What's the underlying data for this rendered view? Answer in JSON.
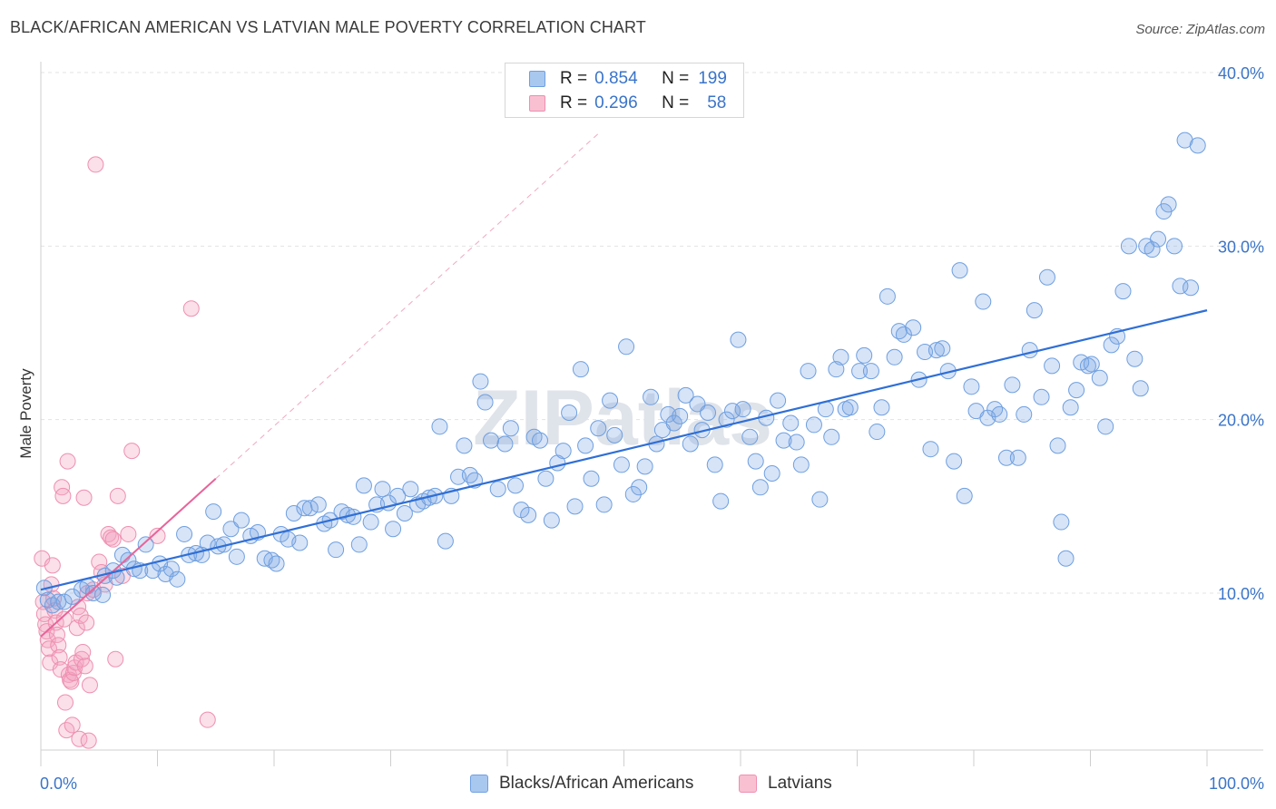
{
  "header": {
    "title": "BLACK/AFRICAN AMERICAN VS LATVIAN MALE POVERTY CORRELATION CHART",
    "source": "Source: ZipAtlas.com"
  },
  "watermark": "ZIPatlas",
  "legend": {
    "rows": [
      {
        "r_label": "R =",
        "r_value": "0.854",
        "n_label": "N =",
        "n_value": "199",
        "color": "#a9c8f0",
        "border": "#6e9fe0"
      },
      {
        "r_label": "R =",
        "r_value": "0.296",
        "n_label": "N =",
        "n_value": "58",
        "color": "#f9c0d2",
        "border": "#ee8fb0"
      }
    ]
  },
  "bottom_legend": {
    "items": [
      {
        "label": "Blacks/African Americans",
        "color": "#a9c8f0",
        "border": "#6e9fe0"
      },
      {
        "label": "Latvians",
        "color": "#f9c0d2",
        "border": "#ee8fb0"
      }
    ]
  },
  "chart_data": {
    "type": "scatter",
    "title": "BLACK/AFRICAN AMERICAN VS LATVIAN MALE POVERTY CORRELATION CHART",
    "xlabel": "",
    "ylabel": "Male Poverty",
    "xlim": [
      0,
      100
    ],
    "ylim": [
      0,
      42
    ],
    "x_tick_labels": [
      "0.0%",
      "100.0%"
    ],
    "y_ticks": [
      10,
      20,
      30,
      40
    ],
    "y_tick_labels": [
      "10.0%",
      "20.0%",
      "30.0%",
      "40.0%"
    ],
    "grid": true,
    "colors": {
      "blue": "#7ba7e6",
      "blue_line": "#2f6fd6",
      "pink": "#f3a3bf",
      "pink_line": "#e8649a"
    },
    "series": [
      {
        "name": "Blacks/African Americans",
        "trendline": {
          "x0": 0,
          "y0": 10.2,
          "x1": 100,
          "y1": 26.3
        },
        "points": [
          [
            0.3,
            10.3
          ],
          [
            0.6,
            9.6
          ],
          [
            1.0,
            9.3
          ],
          [
            1.5,
            9.5
          ],
          [
            2.0,
            9.5
          ],
          [
            2.7,
            9.8
          ],
          [
            3.5,
            10.2
          ],
          [
            4.0,
            10.4
          ],
          [
            4.5,
            10.0
          ],
          [
            5.3,
            9.9
          ],
          [
            5.5,
            11.0
          ],
          [
            6.2,
            11.3
          ],
          [
            6.5,
            10.9
          ],
          [
            7.0,
            12.2
          ],
          [
            7.5,
            11.9
          ],
          [
            8.0,
            11.4
          ],
          [
            8.5,
            11.3
          ],
          [
            9.0,
            12.8
          ],
          [
            9.6,
            11.3
          ],
          [
            10.2,
            11.7
          ],
          [
            10.7,
            11.1
          ],
          [
            11.2,
            11.4
          ],
          [
            11.7,
            10.8
          ],
          [
            12.3,
            13.4
          ],
          [
            12.7,
            12.2
          ],
          [
            13.3,
            12.3
          ],
          [
            13.8,
            12.2
          ],
          [
            14.3,
            12.9
          ],
          [
            14.8,
            14.7
          ],
          [
            15.2,
            12.7
          ],
          [
            15.7,
            12.8
          ],
          [
            16.3,
            13.7
          ],
          [
            16.8,
            12.1
          ],
          [
            17.2,
            14.2
          ],
          [
            18.0,
            13.3
          ],
          [
            18.6,
            13.5
          ],
          [
            19.2,
            12.0
          ],
          [
            19.8,
            11.9
          ],
          [
            20.2,
            11.7
          ],
          [
            20.6,
            13.4
          ],
          [
            21.2,
            13.1
          ],
          [
            21.7,
            14.6
          ],
          [
            22.2,
            12.9
          ],
          [
            22.6,
            14.9
          ],
          [
            23.1,
            14.9
          ],
          [
            23.8,
            15.1
          ],
          [
            24.3,
            14.0
          ],
          [
            24.8,
            14.2
          ],
          [
            25.3,
            12.5
          ],
          [
            25.8,
            14.7
          ],
          [
            26.3,
            14.5
          ],
          [
            26.8,
            14.4
          ],
          [
            27.3,
            12.8
          ],
          [
            27.7,
            16.2
          ],
          [
            28.3,
            14.1
          ],
          [
            28.8,
            15.1
          ],
          [
            29.3,
            16.0
          ],
          [
            29.8,
            15.2
          ],
          [
            30.2,
            13.7
          ],
          [
            30.6,
            15.6
          ],
          [
            31.2,
            14.6
          ],
          [
            31.7,
            16.0
          ],
          [
            32.3,
            15.1
          ],
          [
            32.8,
            15.3
          ],
          [
            33.3,
            15.5
          ],
          [
            33.8,
            15.6
          ],
          [
            34.2,
            19.6
          ],
          [
            34.7,
            13.0
          ],
          [
            35.2,
            15.6
          ],
          [
            35.8,
            16.7
          ],
          [
            36.3,
            18.5
          ],
          [
            36.8,
            16.8
          ],
          [
            37.2,
            16.5
          ],
          [
            37.7,
            22.2
          ],
          [
            38.1,
            21.0
          ],
          [
            38.6,
            18.8
          ],
          [
            39.2,
            16.0
          ],
          [
            39.8,
            18.6
          ],
          [
            40.3,
            19.5
          ],
          [
            40.7,
            16.2
          ],
          [
            41.2,
            14.8
          ],
          [
            41.8,
            14.5
          ],
          [
            42.3,
            19.0
          ],
          [
            42.8,
            18.8
          ],
          [
            43.3,
            16.6
          ],
          [
            43.8,
            14.2
          ],
          [
            44.3,
            17.5
          ],
          [
            44.8,
            18.2
          ],
          [
            45.3,
            20.4
          ],
          [
            45.8,
            15.0
          ],
          [
            46.3,
            22.9
          ],
          [
            46.7,
            18.5
          ],
          [
            47.2,
            16.6
          ],
          [
            47.8,
            19.5
          ],
          [
            48.3,
            15.1
          ],
          [
            48.8,
            21.1
          ],
          [
            49.2,
            19.1
          ],
          [
            49.8,
            17.4
          ],
          [
            50.2,
            24.2
          ],
          [
            50.8,
            15.7
          ],
          [
            51.3,
            16.1
          ],
          [
            51.8,
            17.3
          ],
          [
            52.3,
            21.3
          ],
          [
            52.8,
            18.6
          ],
          [
            53.3,
            19.4
          ],
          [
            53.8,
            20.3
          ],
          [
            54.3,
            19.8
          ],
          [
            54.8,
            20.2
          ],
          [
            55.3,
            21.4
          ],
          [
            55.7,
            18.6
          ],
          [
            56.3,
            20.9
          ],
          [
            56.7,
            19.4
          ],
          [
            57.2,
            20.4
          ],
          [
            57.8,
            17.4
          ],
          [
            58.3,
            15.3
          ],
          [
            58.8,
            20.0
          ],
          [
            59.3,
            20.5
          ],
          [
            59.8,
            24.6
          ],
          [
            60.2,
            20.6
          ],
          [
            60.8,
            19.0
          ],
          [
            61.3,
            17.6
          ],
          [
            61.7,
            16.1
          ],
          [
            62.2,
            20.1
          ],
          [
            62.7,
            16.9
          ],
          [
            63.2,
            21.1
          ],
          [
            63.7,
            18.8
          ],
          [
            64.3,
            19.8
          ],
          [
            64.8,
            18.7
          ],
          [
            65.2,
            17.4
          ],
          [
            65.8,
            22.8
          ],
          [
            66.3,
            19.7
          ],
          [
            66.8,
            15.4
          ],
          [
            67.3,
            20.6
          ],
          [
            67.8,
            19.0
          ],
          [
            68.2,
            22.9
          ],
          [
            68.6,
            23.6
          ],
          [
            69.0,
            20.6
          ],
          [
            69.4,
            20.7
          ],
          [
            70.2,
            22.8
          ],
          [
            70.6,
            23.7
          ],
          [
            71.2,
            22.8
          ],
          [
            71.7,
            19.3
          ],
          [
            72.1,
            20.7
          ],
          [
            72.6,
            27.1
          ],
          [
            73.2,
            23.6
          ],
          [
            73.6,
            25.1
          ],
          [
            74.0,
            24.9
          ],
          [
            74.8,
            25.3
          ],
          [
            75.3,
            22.3
          ],
          [
            75.8,
            23.9
          ],
          [
            76.3,
            18.3
          ],
          [
            76.8,
            24.0
          ],
          [
            77.3,
            24.1
          ],
          [
            77.8,
            22.8
          ],
          [
            78.3,
            17.6
          ],
          [
            78.8,
            28.6
          ],
          [
            79.2,
            15.6
          ],
          [
            79.8,
            21.9
          ],
          [
            80.2,
            20.5
          ],
          [
            80.8,
            26.8
          ],
          [
            81.2,
            20.1
          ],
          [
            81.8,
            20.6
          ],
          [
            82.2,
            20.3
          ],
          [
            82.8,
            17.8
          ],
          [
            83.3,
            22.0
          ],
          [
            83.8,
            17.8
          ],
          [
            84.3,
            20.3
          ],
          [
            84.8,
            24.0
          ],
          [
            85.2,
            26.3
          ],
          [
            85.8,
            21.3
          ],
          [
            86.3,
            28.2
          ],
          [
            86.7,
            23.1
          ],
          [
            87.2,
            18.5
          ],
          [
            87.5,
            14.1
          ],
          [
            87.9,
            12.0
          ],
          [
            88.3,
            20.7
          ],
          [
            88.8,
            21.7
          ],
          [
            89.2,
            23.3
          ],
          [
            89.8,
            23.1
          ],
          [
            90.1,
            23.2
          ],
          [
            90.8,
            22.4
          ],
          [
            91.3,
            19.6
          ],
          [
            91.8,
            24.3
          ],
          [
            92.3,
            24.8
          ],
          [
            92.8,
            27.4
          ],
          [
            93.3,
            30.0
          ],
          [
            93.8,
            23.5
          ],
          [
            94.3,
            21.8
          ],
          [
            94.8,
            30.0
          ],
          [
            95.3,
            29.8
          ],
          [
            95.8,
            30.4
          ],
          [
            96.3,
            32.0
          ],
          [
            96.7,
            32.4
          ],
          [
            97.2,
            30.0
          ],
          [
            97.7,
            27.7
          ],
          [
            98.1,
            36.1
          ],
          [
            98.6,
            27.6
          ],
          [
            99.2,
            35.8
          ]
        ]
      },
      {
        "name": "Latvians",
        "trendline": {
          "x0": 0,
          "y0": 7.5,
          "x1": 15,
          "y1": 16.6
        },
        "trendline_dashed": {
          "x0": 15,
          "y0": 16.6,
          "x1": 48,
          "y1": 36.6
        },
        "points": [
          [
            0.1,
            12.0
          ],
          [
            0.2,
            9.5
          ],
          [
            0.3,
            8.8
          ],
          [
            0.4,
            8.2
          ],
          [
            0.5,
            7.8
          ],
          [
            0.6,
            7.3
          ],
          [
            0.7,
            6.8
          ],
          [
            0.8,
            6.0
          ],
          [
            0.9,
            10.5
          ],
          [
            1.0,
            11.6
          ],
          [
            1.1,
            9.7
          ],
          [
            1.2,
            9.0
          ],
          [
            1.3,
            8.3
          ],
          [
            1.4,
            7.6
          ],
          [
            1.5,
            7.0
          ],
          [
            1.6,
            6.3
          ],
          [
            1.7,
            5.6
          ],
          [
            1.8,
            16.1
          ],
          [
            1.9,
            15.6
          ],
          [
            2.0,
            8.5
          ],
          [
            2.1,
            3.7
          ],
          [
            2.2,
            2.1
          ],
          [
            2.3,
            17.6
          ],
          [
            2.4,
            5.3
          ],
          [
            2.5,
            5.0
          ],
          [
            2.6,
            4.9
          ],
          [
            2.7,
            2.4
          ],
          [
            2.8,
            5.4
          ],
          [
            2.9,
            5.7
          ],
          [
            3.0,
            6.0
          ],
          [
            3.1,
            8.0
          ],
          [
            3.2,
            9.2
          ],
          [
            3.3,
            1.6
          ],
          [
            3.4,
            8.7
          ],
          [
            3.5,
            6.2
          ],
          [
            3.6,
            6.6
          ],
          [
            3.7,
            15.5
          ],
          [
            3.8,
            5.8
          ],
          [
            3.9,
            8.3
          ],
          [
            4.0,
            10.0
          ],
          [
            4.1,
            1.5
          ],
          [
            4.2,
            4.7
          ],
          [
            4.5,
            10.2
          ],
          [
            4.7,
            34.7
          ],
          [
            5.0,
            11.8
          ],
          [
            5.2,
            11.2
          ],
          [
            5.5,
            10.5
          ],
          [
            5.8,
            13.4
          ],
          [
            6.0,
            13.2
          ],
          [
            6.2,
            13.1
          ],
          [
            6.4,
            6.2
          ],
          [
            6.6,
            15.6
          ],
          [
            7.0,
            11.0
          ],
          [
            7.5,
            13.4
          ],
          [
            7.8,
            18.2
          ],
          [
            10.0,
            13.3
          ],
          [
            12.9,
            26.4
          ],
          [
            14.3,
            2.7
          ]
        ]
      }
    ]
  }
}
